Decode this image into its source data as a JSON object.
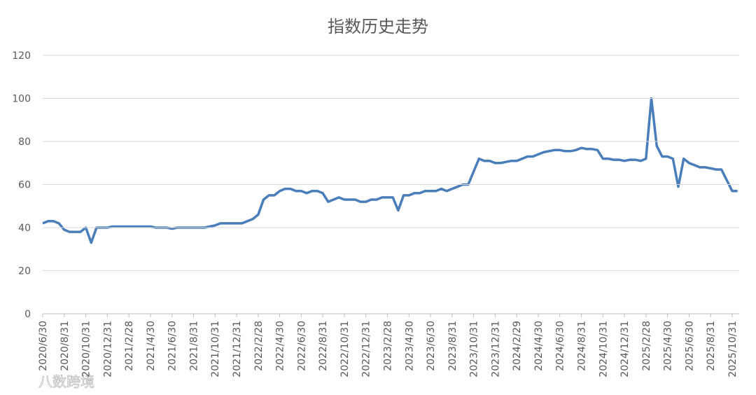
{
  "chart_data": {
    "type": "line",
    "title": "指数历史走势",
    "categories": [
      "2020/6/30",
      null,
      null,
      null,
      "2020/8/31",
      null,
      null,
      null,
      "2020/10/31",
      null,
      null,
      null,
      "2020/12/31",
      null,
      null,
      null,
      "2021/2/28",
      null,
      null,
      null,
      "2021/4/30",
      null,
      null,
      null,
      "2021/6/30",
      null,
      null,
      null,
      "2021/8/31",
      null,
      null,
      null,
      "2021/10/31",
      null,
      null,
      null,
      "2021/12/31",
      null,
      null,
      null,
      "2022/2/28",
      null,
      null,
      null,
      "2022/4/30",
      null,
      null,
      null,
      "2022/6/30",
      null,
      null,
      null,
      "2022/8/31",
      null,
      null,
      null,
      "2022/10/31",
      null,
      null,
      null,
      "2022/12/31",
      null,
      null,
      null,
      "2023/2/28",
      null,
      null,
      null,
      "2023/4/30",
      null,
      null,
      null,
      "2023/6/30",
      null,
      null,
      null,
      "2023/8/31",
      null,
      null,
      null,
      "2023/10/31",
      null,
      null,
      null,
      "2023/12/31",
      null,
      null,
      null,
      "2024/2/29",
      null,
      null,
      null,
      "2024/4/30",
      null,
      null,
      null,
      "2024/6/30",
      null,
      null,
      null,
      "2024/8/31",
      null,
      null,
      null,
      "2024/10/31",
      null,
      null,
      null,
      "2024/12/31",
      null,
      null,
      null,
      "2025/2/28",
      null,
      null,
      null,
      "2025/4/30",
      null,
      null,
      null,
      "2025/6/30",
      null,
      null,
      null,
      "2025/8/31",
      null,
      null,
      null,
      "2025/10/31",
      null
    ],
    "values": [
      42,
      43,
      43,
      42,
      39,
      38,
      38,
      38,
      40,
      33,
      40,
      40,
      40,
      40.5,
      40.5,
      40.5,
      40.5,
      40.5,
      40.5,
      40.5,
      40.5,
      40,
      40,
      40,
      39.5,
      40,
      40,
      40,
      40,
      40,
      40,
      40.5,
      41,
      42,
      42,
      42,
      42,
      42,
      43,
      44,
      46,
      53,
      55,
      55,
      57,
      58,
      58,
      57,
      57,
      56,
      57,
      57,
      56,
      52,
      53,
      54,
      53,
      53,
      53,
      52,
      52,
      53,
      53,
      54,
      54,
      54,
      48,
      55,
      55,
      56,
      56,
      57,
      57,
      57,
      58,
      57,
      58,
      59,
      60,
      60,
      66,
      72,
      71,
      71,
      70,
      70,
      70.5,
      71,
      71,
      72,
      73,
      73,
      74,
      75,
      75.5,
      76,
      76,
      75.5,
      75.5,
      76,
      77,
      76.5,
      76.5,
      76,
      72,
      72,
      71.5,
      71.5,
      71,
      71.5,
      71.5,
      71,
      72,
      100,
      78,
      73,
      73,
      72,
      59,
      72,
      70,
      69,
      68,
      68,
      67.5,
      67,
      67,
      62,
      57,
      57
    ],
    "color": "#4a7ebb",
    "ylim": [
      0,
      120
    ],
    "yticks": [
      0,
      20,
      40,
      60,
      80,
      100,
      120
    ],
    "grid": true
  },
  "watermark": "八数跨境"
}
